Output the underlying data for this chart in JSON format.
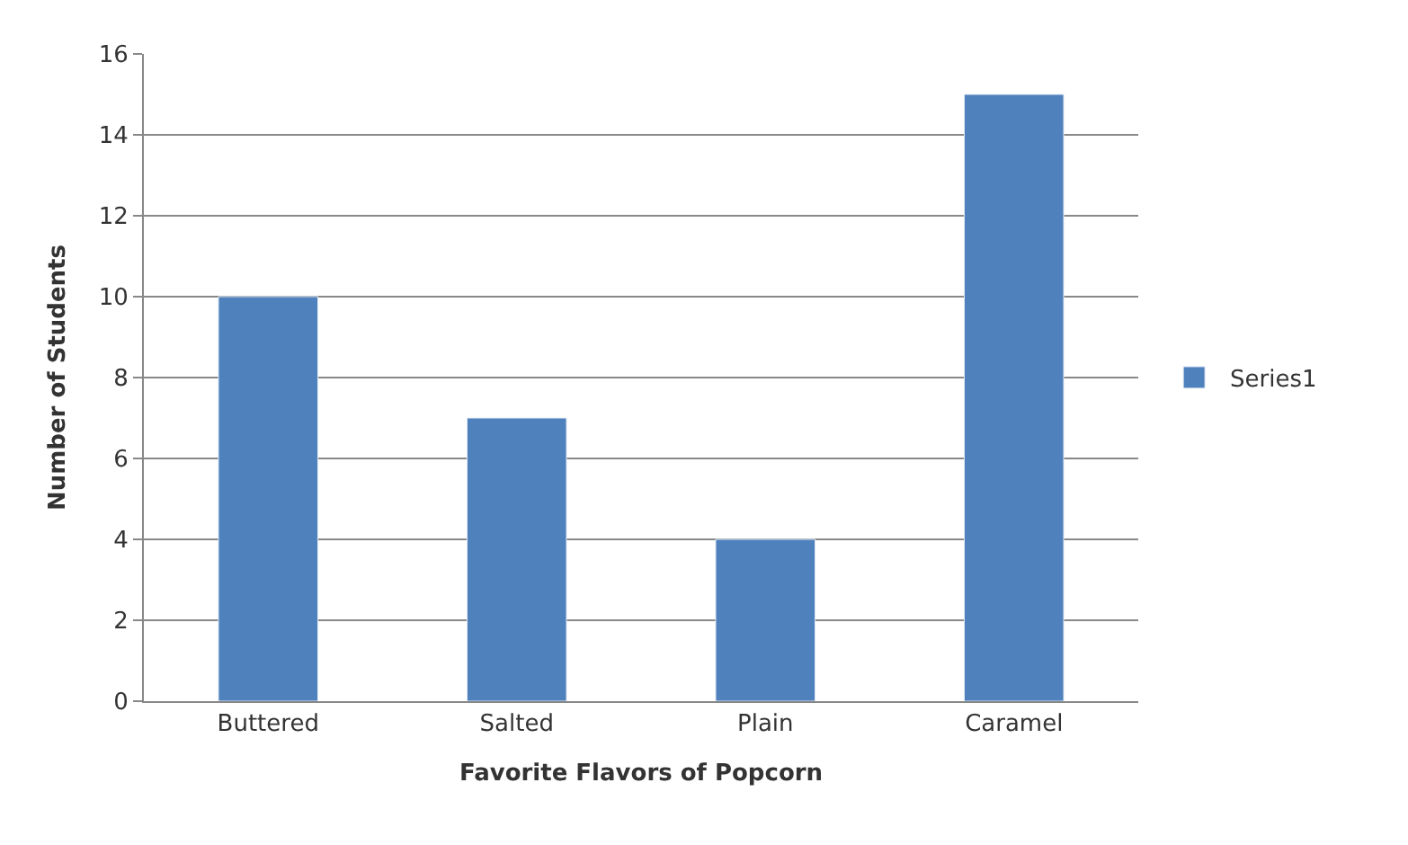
{
  "chart_data": {
    "type": "bar",
    "xlabel": "Favorite Flavors of Popcorn",
    "ylabel": "Number of Students",
    "categories": [
      "Buttered",
      "Salted",
      "Plain",
      "Caramel"
    ],
    "series": [
      {
        "name": "Series1",
        "color": "#4f81bd",
        "values": [
          10,
          7,
          4,
          15
        ]
      }
    ],
    "ylim": [
      0,
      16
    ],
    "yticks": [
      0,
      2,
      4,
      6,
      8,
      10,
      12,
      14,
      16
    ],
    "grid": "y",
    "legend": "right"
  }
}
